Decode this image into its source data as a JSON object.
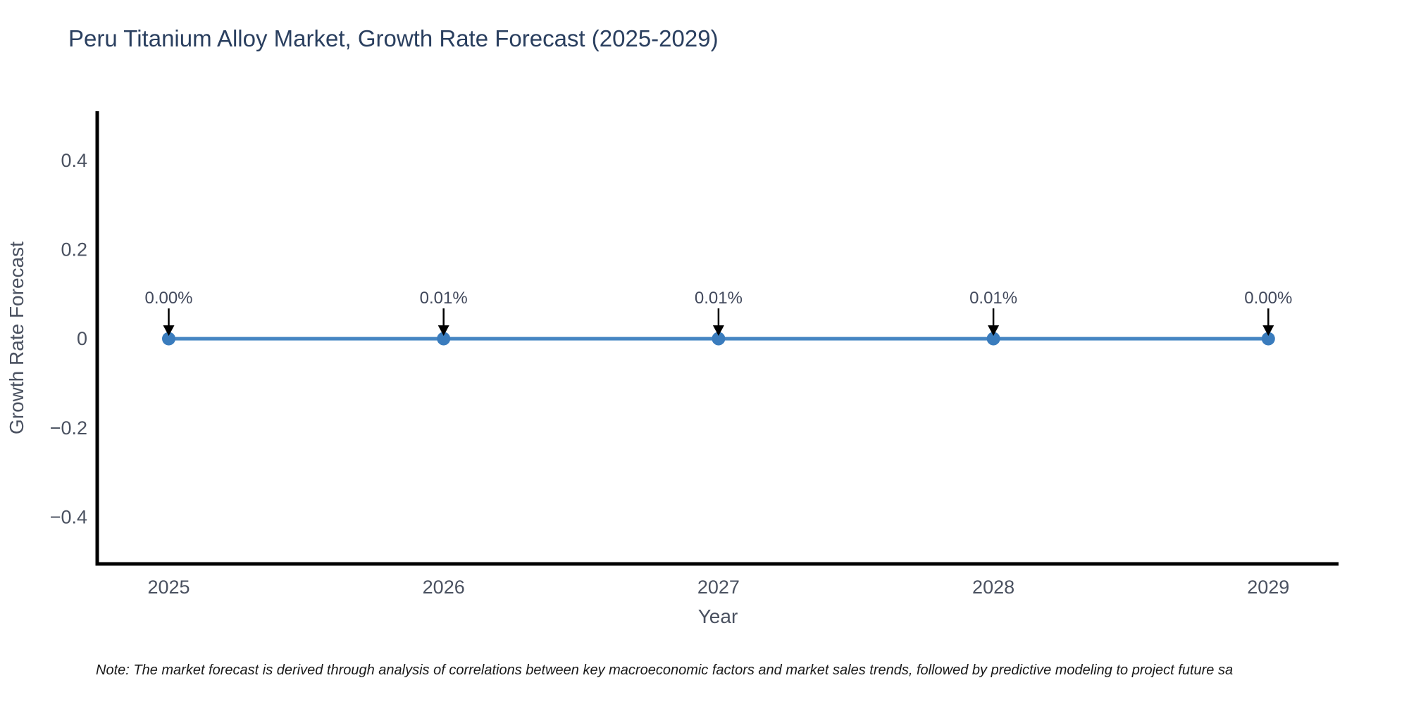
{
  "page": {
    "note": "Note: The market forecast is derived through analysis of correlations between key macroeconomic factors and market sales trends, followed by predictive modeling to project future sa"
  },
  "chart_data": {
    "type": "line",
    "title": "Peru Titanium Alloy Market, Growth Rate Forecast (2025-2029)",
    "xlabel": "Year",
    "ylabel": "Growth Rate Forecast",
    "categories": [
      "2025",
      "2026",
      "2027",
      "2028",
      "2029"
    ],
    "series": [
      {
        "name": "Growth Rate Forecast",
        "values": [
          0.0,
          0.0001,
          0.0001,
          0.0001,
          0.0
        ]
      }
    ],
    "point_annotations": [
      "0.00%",
      "0.01%",
      "0.01%",
      "0.01%",
      "0.00%"
    ],
    "ytick_values": [
      0.4,
      0.2,
      0,
      -0.2,
      -0.4
    ],
    "ytick_labels": [
      "0.4",
      "0.2",
      "0",
      "−0.2",
      "−0.4"
    ],
    "ylim": [
      -0.505,
      0.507
    ],
    "grid": false,
    "legend_position": "none",
    "colors": {
      "line": "#4686c3",
      "marker": "#3a7cbd",
      "axis_line": "#000000",
      "tick_text": "#4a5160",
      "title_text": "#2a3f5f",
      "annotation_text": "#42495c",
      "annotation_arrow": "#000000"
    }
  }
}
